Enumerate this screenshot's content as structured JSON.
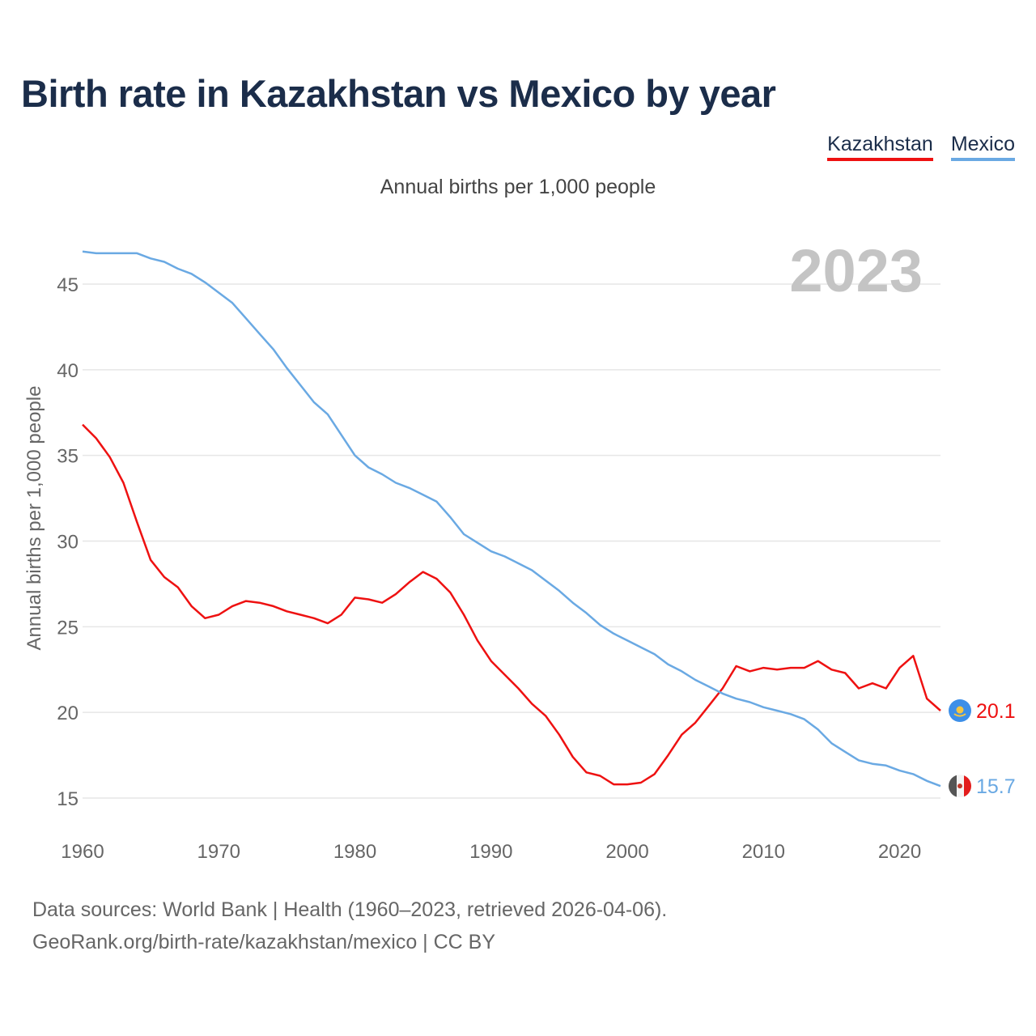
{
  "title": "Birth rate in Kazakhstan vs Mexico by year",
  "subtitle": "Annual births per 1,000 people",
  "year_watermark": "2023",
  "legend": {
    "kazakhstan": "Kazakhstan",
    "mexico": "Mexico"
  },
  "footer": {
    "line1": "Data sources: World Bank | Health (1960–2023, retrieved 2026-04-06).",
    "line2": "GeoRank.org/birth-rate/kazakhstan/mexico | CC BY"
  },
  "colors": {
    "kazakhstan": "#ee1111",
    "mexico": "#6aa9e3",
    "title": "#1b2d4a",
    "grid": "#e6e6e6"
  },
  "chart_data": {
    "type": "line",
    "title": "Birth rate in Kazakhstan vs Mexico by year",
    "ylabel": "Annual births per 1,000 people",
    "xlabel": "",
    "xlim": [
      1960,
      2023
    ],
    "ylim": [
      14,
      48
    ],
    "xticks": [
      1960,
      1970,
      1980,
      1990,
      2000,
      2010,
      2020
    ],
    "yticks": [
      15,
      20,
      25,
      30,
      35,
      40,
      45
    ],
    "grid": true,
    "legend_position": "top-right",
    "x": [
      1960,
      1961,
      1962,
      1963,
      1964,
      1965,
      1966,
      1967,
      1968,
      1969,
      1970,
      1971,
      1972,
      1973,
      1974,
      1975,
      1976,
      1977,
      1978,
      1979,
      1980,
      1981,
      1982,
      1983,
      1984,
      1985,
      1986,
      1987,
      1988,
      1989,
      1990,
      1991,
      1992,
      1993,
      1994,
      1995,
      1996,
      1997,
      1998,
      1999,
      2000,
      2001,
      2002,
      2003,
      2004,
      2005,
      2006,
      2007,
      2008,
      2009,
      2010,
      2011,
      2012,
      2013,
      2014,
      2015,
      2016,
      2017,
      2018,
      2019,
      2020,
      2021,
      2022,
      2023
    ],
    "series": [
      {
        "name": "Kazakhstan",
        "end_label": "20.1",
        "values": [
          36.8,
          36.0,
          34.9,
          33.4,
          31.1,
          28.9,
          27.9,
          27.3,
          26.2,
          25.5,
          25.7,
          26.2,
          26.5,
          26.4,
          26.2,
          25.9,
          25.7,
          25.5,
          25.2,
          25.7,
          26.7,
          26.6,
          26.4,
          26.9,
          27.6,
          28.2,
          27.8,
          27.0,
          25.7,
          24.2,
          23.0,
          22.2,
          21.4,
          20.5,
          19.8,
          18.7,
          17.4,
          16.5,
          16.3,
          15.8,
          15.8,
          15.9,
          16.4,
          17.5,
          18.7,
          19.4,
          20.4,
          21.4,
          22.7,
          22.4,
          22.6,
          22.5,
          22.6,
          22.6,
          23.0,
          22.5,
          22.3,
          21.4,
          21.7,
          21.4,
          22.6,
          23.3,
          20.8,
          20.1
        ]
      },
      {
        "name": "Mexico",
        "end_label": "15.7",
        "values": [
          46.9,
          46.8,
          46.8,
          46.8,
          46.8,
          46.5,
          46.3,
          45.9,
          45.6,
          45.1,
          44.5,
          43.9,
          43.0,
          42.1,
          41.2,
          40.1,
          39.1,
          38.1,
          37.4,
          36.2,
          35.0,
          34.3,
          33.9,
          33.4,
          33.1,
          32.7,
          32.3,
          31.4,
          30.4,
          29.9,
          29.4,
          29.1,
          28.7,
          28.3,
          27.7,
          27.1,
          26.4,
          25.8,
          25.1,
          24.6,
          24.2,
          23.8,
          23.4,
          22.8,
          22.4,
          21.9,
          21.5,
          21.1,
          20.8,
          20.6,
          20.3,
          20.1,
          19.9,
          19.6,
          19.0,
          18.2,
          17.7,
          17.2,
          17.0,
          16.9,
          16.6,
          16.4,
          16.0,
          15.7
        ]
      }
    ]
  }
}
